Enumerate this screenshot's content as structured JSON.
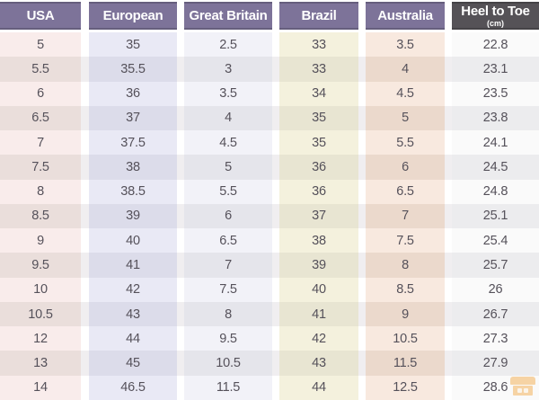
{
  "chart_data": {
    "type": "table",
    "columns": [
      {
        "label": "USA"
      },
      {
        "label": "European"
      },
      {
        "label": "Great Britain"
      },
      {
        "label": "Brazil"
      },
      {
        "label": "Australia"
      },
      {
        "label": "Heel to Toe",
        "sublabel": "(cm)"
      }
    ],
    "rows": [
      [
        "5",
        "35",
        "2.5",
        "33",
        "3.5",
        "22.8"
      ],
      [
        "5.5",
        "35.5",
        "3",
        "33",
        "4",
        "23.1"
      ],
      [
        "6",
        "36",
        "3.5",
        "34",
        "4.5",
        "23.5"
      ],
      [
        "6.5",
        "37",
        "4",
        "35",
        "5",
        "23.8"
      ],
      [
        "7",
        "37.5",
        "4.5",
        "35",
        "5.5",
        "24.1"
      ],
      [
        "7.5",
        "38",
        "5",
        "36",
        "6",
        "24.5"
      ],
      [
        "8",
        "38.5",
        "5.5",
        "36",
        "6.5",
        "24.8"
      ],
      [
        "8.5",
        "39",
        "6",
        "37",
        "7",
        "25.1"
      ],
      [
        "9",
        "40",
        "6.5",
        "38",
        "7.5",
        "25.4"
      ],
      [
        "9.5",
        "41",
        "7",
        "39",
        "8",
        "25.7"
      ],
      [
        "10",
        "42",
        "7.5",
        "40",
        "8.5",
        "26"
      ],
      [
        "10.5",
        "43",
        "8",
        "41",
        "9",
        "26.7"
      ],
      [
        "12",
        "44",
        "9.5",
        "42",
        "10.5",
        "27.3"
      ],
      [
        "13",
        "45",
        "10.5",
        "43",
        "11.5",
        "27.9"
      ],
      [
        "14",
        "46.5",
        "11.5",
        "44",
        "12.5",
        "28.6"
      ]
    ]
  },
  "colors": {
    "header_text": "#ffffff",
    "cell_text": "#55515a",
    "header_backgrounds": [
      "#7d7399",
      "#7d7399",
      "#7d7399",
      "#7d7399",
      "#7d7399",
      "#555257"
    ],
    "column_cell_light": [
      "#f9eceb",
      "#e9e9f5",
      "#f2f2f8",
      "#f4f1dd",
      "#f8e9df",
      "#fafafa"
    ],
    "column_cell_dark": [
      "#eadedb",
      "#dcdcea",
      "#e5e5eb",
      "#e8e5d2",
      "#ebd9cc",
      "#ececee"
    ],
    "gutter_light": "#ffffff",
    "gutter_dark": "#f0eef0",
    "watermark": "#f2a43e"
  }
}
